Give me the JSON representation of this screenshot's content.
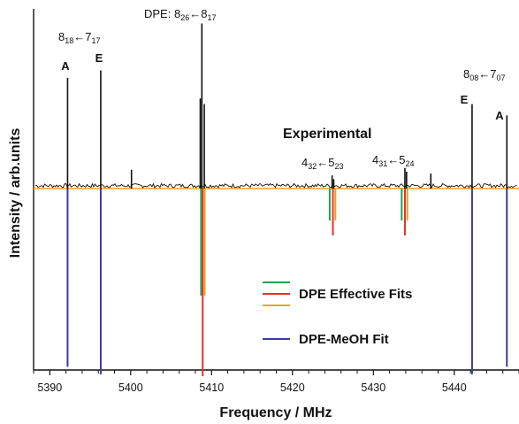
{
  "chart_data": {
    "type": "line",
    "xlabel": "Frequency / MHz",
    "ylabel": "Intensity / arb.units",
    "xlim": [
      5388,
      5448
    ],
    "ylim": [
      -1.0,
      0.85
    ],
    "x_ticks": [
      5390,
      5400,
      5410,
      5420,
      5430,
      5440
    ],
    "grid": false,
    "annotations": {
      "experimental": "Experimental",
      "t1_main": "8",
      "t1_sub1": "18",
      "t1_arrow": "←",
      "t1_mid": "7",
      "t1_sub2": "17",
      "t2_prefix": "DPE: 8",
      "t2_sub1": "26",
      "t2_arrow": "←",
      "t2_mid": "8",
      "t2_sub2": "17",
      "t3_main": "4",
      "t3_sub1": "32",
      "t3_arrow": "←",
      "t3_mid": "5",
      "t3_sub2": "23",
      "t4_main": "4",
      "t4_sub1": "31",
      "t4_arrow": "←",
      "t4_mid": "5",
      "t4_sub2": "24",
      "t5_main": "8",
      "t5_sub1": "08",
      "t5_arrow": "←",
      "t5_mid": "7",
      "t5_sub2": "07",
      "label_A1": "A",
      "label_E1": "E",
      "label_E2": "E",
      "label_A2": "A"
    },
    "legend": {
      "position": "bottom-right",
      "effective_label": "DPE Effective Fits",
      "meoh_label": "DPE-MeOH Fit",
      "colors": [
        "#22a050",
        "#e8322f",
        "#f2a024",
        "#3b3b9c"
      ]
    },
    "series": [
      {
        "name": "Experimental",
        "color": "#111111",
        "points": [
          {
            "x": 5392.2,
            "y": 0.59
          },
          {
            "x": 5396.3,
            "y": 0.63
          },
          {
            "x": 5400.1,
            "y": 0.1
          },
          {
            "x": 5408.6,
            "y": 0.48
          },
          {
            "x": 5408.8,
            "y": 0.88
          },
          {
            "x": 5409.1,
            "y": 0.45
          },
          {
            "x": 5424.9,
            "y": 0.07
          },
          {
            "x": 5425.1,
            "y": 0.05
          },
          {
            "x": 5433.9,
            "y": 0.11
          },
          {
            "x": 5434.1,
            "y": 0.09
          },
          {
            "x": 5437.1,
            "y": 0.08
          },
          {
            "x": 5442.2,
            "y": 0.45
          },
          {
            "x": 5446.5,
            "y": 0.39
          }
        ]
      },
      {
        "name": "DPE Effective Fits",
        "color": "#22a050",
        "points": [
          {
            "x": 5408.7,
            "y": -0.57
          },
          {
            "x": 5424.6,
            "y": -0.17
          },
          {
            "x": 5433.5,
            "y": -0.17
          }
        ]
      },
      {
        "name": "DPE Effective Fits",
        "color": "#e8322f",
        "points": [
          {
            "x": 5408.9,
            "y": -1.0
          },
          {
            "x": 5425.0,
            "y": -0.25
          },
          {
            "x": 5433.9,
            "y": -0.25
          }
        ]
      },
      {
        "name": "DPE Effective Fits",
        "color": "#f2a024",
        "points": [
          {
            "x": 5409.15,
            "y": -0.57
          },
          {
            "x": 5425.3,
            "y": -0.17
          },
          {
            "x": 5434.2,
            "y": -0.17
          }
        ]
      },
      {
        "name": "DPE-MeOH Fit",
        "color": "#3b3b9c",
        "points": [
          {
            "x": 5392.2,
            "y": -0.95
          },
          {
            "x": 5396.3,
            "y": -0.99
          },
          {
            "x": 5442.2,
            "y": -0.99
          },
          {
            "x": 5446.5,
            "y": -0.95
          }
        ]
      }
    ]
  }
}
